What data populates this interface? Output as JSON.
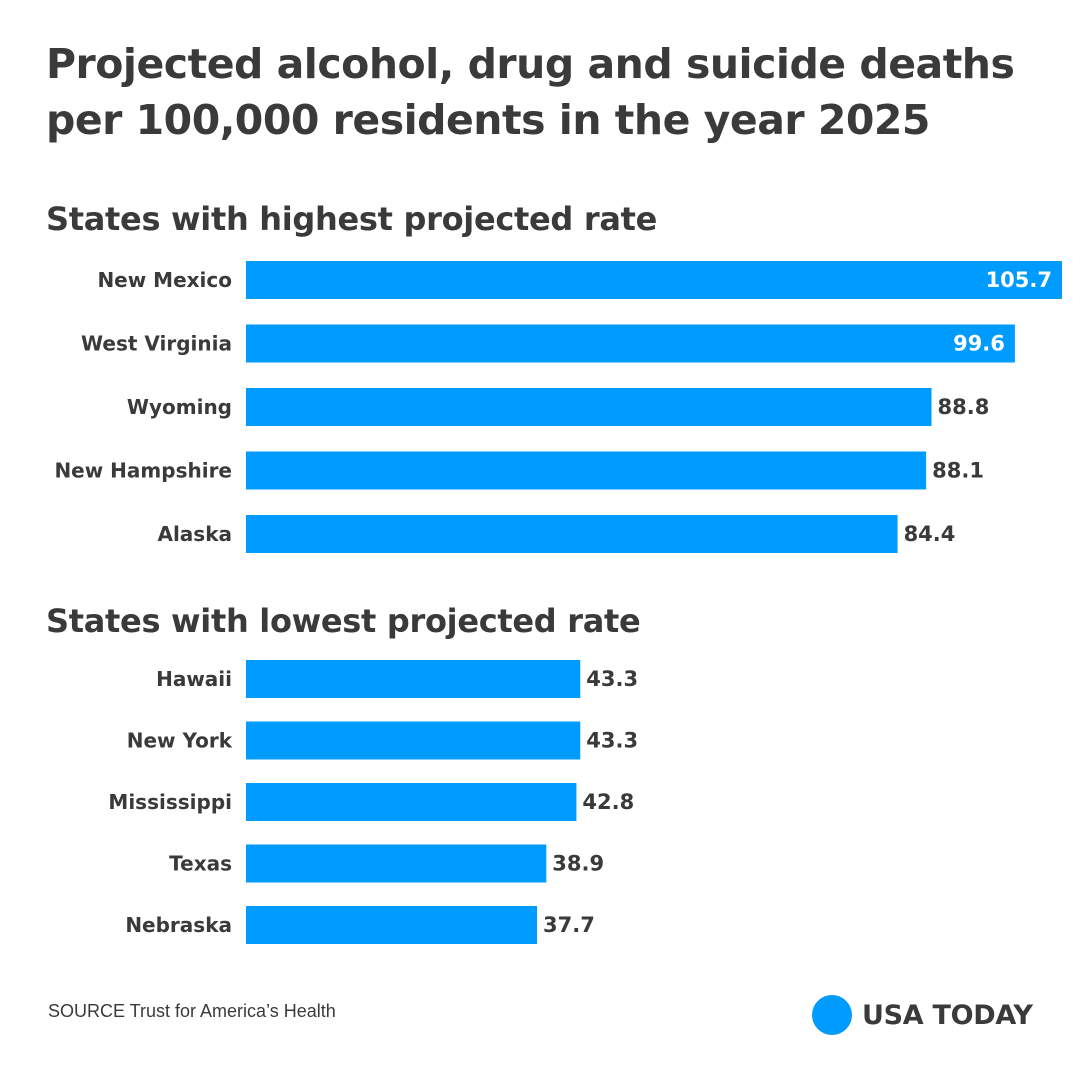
{
  "title": "Projected alcohol, drug and suicide deaths per 100,000 residents in the year 2025",
  "colors": {
    "bar": "#009bff",
    "text": "#3a3a3a",
    "inside_label": "#ffffff"
  },
  "chart_data": [
    {
      "type": "bar",
      "orientation": "horizontal",
      "title": "States with highest projected rate",
      "categories": [
        "New Mexico",
        "West Virginia",
        "Wyoming",
        "New Hampshire",
        "Alaska"
      ],
      "values": [
        105.7,
        99.6,
        88.8,
        88.1,
        84.4
      ],
      "value_labels": [
        "105.7",
        "99.6",
        "88.8",
        "88.1",
        "84.4"
      ],
      "xlim": [
        0,
        105.7
      ],
      "grid": false,
      "legend": "none"
    },
    {
      "type": "bar",
      "orientation": "horizontal",
      "title": "States with lowest projected rate",
      "categories": [
        "Hawaii",
        "New York",
        "Mississippi",
        "Texas",
        "Nebraska"
      ],
      "values": [
        43.3,
        43.3,
        42.8,
        38.9,
        37.7
      ],
      "value_labels": [
        "43.3",
        "43.3",
        "42.8",
        "38.9",
        "37.7"
      ],
      "xlim": [
        0,
        105.7
      ],
      "grid": false,
      "legend": "none"
    }
  ],
  "source": "SOURCE Trust for America’s Health",
  "logo": {
    "text": "USA TODAY"
  }
}
